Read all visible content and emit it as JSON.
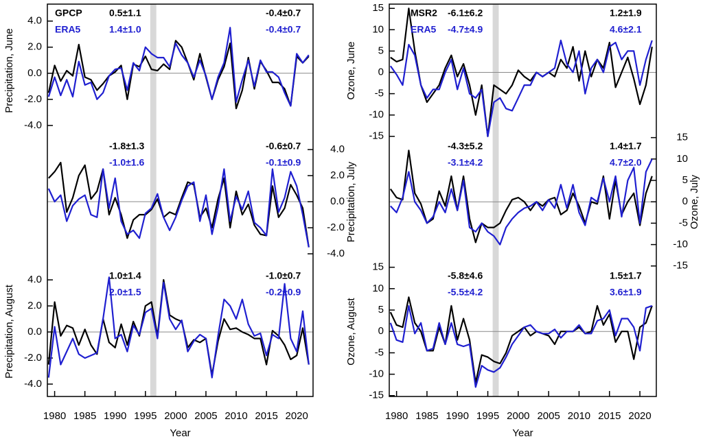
{
  "chart_data": [
    {
      "type": "line",
      "ylabel": "Precipitation, June",
      "yaxis_side": "left",
      "x": [
        1979,
        1980,
        1981,
        1982,
        1983,
        1984,
        1985,
        1986,
        1987,
        1988,
        1989,
        1990,
        1991,
        1992,
        1993,
        1994,
        1995,
        1996,
        1997,
        1998,
        1999,
        2000,
        2001,
        2002,
        2003,
        2004,
        2005,
        2006,
        2007,
        2008,
        2009,
        2010,
        2011,
        2012,
        2013,
        2014,
        2015,
        2016,
        2017,
        2018,
        2019,
        2020,
        2021,
        2022
      ],
      "xlim": [
        1978.8,
        2022.7
      ],
      "ylim": [
        -4.9,
        5.3
      ],
      "yticks": [
        {
          "value": 4,
          "label": "4.0"
        },
        {
          "value": 2,
          "label": "2.0"
        },
        {
          "value": 0,
          "label": "0.0"
        },
        {
          "value": -2,
          "label": "-2.0"
        },
        {
          "value": -4,
          "label": "-4.0"
        }
      ],
      "hline": 0,
      "highlight": [
        1995.8,
        1996.8
      ],
      "series": [
        {
          "name": "GPCP",
          "color": "#000000",
          "values": [
            -1.5,
            0.6,
            -0.6,
            0.2,
            -0.2,
            2.2,
            -0.3,
            -0.5,
            -1.3,
            -0.8,
            -0.2,
            0.1,
            0.6,
            -2.0,
            0.7,
            0.5,
            1.3,
            0.3,
            0.2,
            0.7,
            0.3,
            2.5,
            2.0,
            0.8,
            -0.5,
            1.5,
            -0.3,
            -2.0,
            -0.5,
            0.5,
            2.3,
            -2.7,
            -1.3,
            1.2,
            -1.2,
            0.9,
            0.2,
            -0.7,
            -0.7,
            -1.2,
            -2.5,
            1.3,
            0.8,
            1.3
          ]
        },
        {
          "name": "ERA5",
          "color": "#1f1fd0",
          "values": [
            -1.8,
            -0.3,
            -1.7,
            -0.5,
            -1.8,
            0.9,
            -0.9,
            -0.7,
            -2.0,
            -1.5,
            -0.2,
            0.3,
            0.4,
            -1.3,
            0.8,
            0.2,
            2.0,
            1.5,
            1.2,
            1.2,
            0.5,
            2.3,
            1.4,
            0.8,
            -0.3,
            1.0,
            -0.2,
            -2.0,
            -0.3,
            0.8,
            3.5,
            -2.2,
            -0.5,
            1.0,
            -1.0,
            1.0,
            0.1,
            0.1,
            -0.3,
            -1.5,
            -2.5,
            1.5,
            0.8,
            1.4
          ]
        }
      ],
      "trends": [
        [
          "0.5±1.1",
          "-0.4±0.7"
        ],
        [
          "1.4±1.0",
          "-0.4±0.7"
        ]
      ]
    },
    {
      "type": "line",
      "ylabel": "Precipitation, July",
      "yaxis_side": "right",
      "x": [
        1979,
        1980,
        1981,
        1982,
        1983,
        1984,
        1985,
        1986,
        1987,
        1988,
        1989,
        1990,
        1991,
        1992,
        1993,
        1994,
        1995,
        1996,
        1997,
        1998,
        1999,
        2000,
        2001,
        2002,
        2003,
        2004,
        2005,
        2006,
        2007,
        2008,
        2009,
        2010,
        2011,
        2012,
        2013,
        2014,
        2015,
        2016,
        2017,
        2018,
        2019,
        2020,
        2021,
        2022
      ],
      "xlim": [
        1978.8,
        2022.7
      ],
      "ylim": [
        -5.0,
        4.95
      ],
      "yticks": [
        {
          "value": 4,
          "label": "4.0"
        },
        {
          "value": 2,
          "label": "2.0"
        },
        {
          "value": 0,
          "label": "0.0"
        },
        {
          "value": -2,
          "label": "-2.0"
        },
        {
          "value": -4,
          "label": "-4.0"
        }
      ],
      "hline": 0,
      "highlight": [
        1995.8,
        1996.8
      ],
      "series": [
        {
          "color": "#000000",
          "values": [
            1.8,
            2.3,
            3.0,
            -0.8,
            0.3,
            2.0,
            2.8,
            0.2,
            0.8,
            2.5,
            -1.0,
            0.3,
            -1.0,
            -2.8,
            -1.4,
            -1.0,
            -1.0,
            -0.6,
            0.2,
            -1.2,
            -0.8,
            -1.0,
            0.3,
            1.5,
            1.3,
            -1.2,
            -0.5,
            -2.0,
            0.2,
            1.8,
            -2.0,
            0.8,
            -1.0,
            -0.2,
            -1.8,
            -2.5,
            -2.6,
            1.2,
            -1.2,
            -0.5,
            1.3,
            0.5,
            -0.5,
            -3.5
          ]
        },
        {
          "color": "#1f1fd0",
          "values": [
            1.0,
            0.0,
            0.5,
            -1.5,
            -0.3,
            0.2,
            0.5,
            -1.0,
            -1.2,
            2.5,
            -0.5,
            1.8,
            -1.5,
            -2.5,
            -2.2,
            -2.8,
            -0.9,
            -0.5,
            0.6,
            -1.2,
            -2.2,
            -1.2,
            0.1,
            1.2,
            1.5,
            -1.5,
            0.5,
            -2.5,
            -0.4,
            2.5,
            -1.5,
            0.4,
            -0.6,
            0.8,
            -1.6,
            -2.0,
            -2.6,
            2.5,
            -0.8,
            0.3,
            2.3,
            1.2,
            -1.0,
            -3.5
          ]
        }
      ],
      "trends": [
        [
          "-1.8±1.3",
          "-0.6±0.7"
        ],
        [
          "-1.0±1.6",
          "-0.1±0.9"
        ]
      ]
    },
    {
      "type": "line",
      "ylabel": "Precipitation, August",
      "yaxis_side": "left",
      "xlabel": "Year",
      "x": [
        1979,
        1980,
        1981,
        1982,
        1983,
        1984,
        1985,
        1986,
        1987,
        1988,
        1989,
        1990,
        1991,
        1992,
        1993,
        1994,
        1995,
        1996,
        1997,
        1998,
        1999,
        2000,
        2001,
        2002,
        2003,
        2004,
        2005,
        2006,
        2007,
        2008,
        2009,
        2010,
        2011,
        2012,
        2013,
        2014,
        2015,
        2016,
        2017,
        2018,
        2019,
        2020,
        2021,
        2022
      ],
      "xlim": [
        1978.8,
        2022.7
      ],
      "ylim": [
        -4.95,
        5.0
      ],
      "xticks": [
        1980,
        1985,
        1990,
        1995,
        2000,
        2005,
        2010,
        2015,
        2020
      ],
      "yticks": [
        {
          "value": 4,
          "label": "4.0"
        },
        {
          "value": 2,
          "label": "2.0"
        },
        {
          "value": 0,
          "label": "0.0"
        },
        {
          "value": -2,
          "label": "-2.0"
        },
        {
          "value": -4,
          "label": "-4.0"
        }
      ],
      "hline": 0,
      "highlight": [
        1995.8,
        1996.8
      ],
      "series": [
        {
          "color": "#000000",
          "values": [
            -2.5,
            2.3,
            -0.3,
            0.5,
            0.3,
            -1.0,
            0.2,
            -1.0,
            -1.7,
            1.0,
            -0.8,
            -1.2,
            0.6,
            -1.0,
            0.8,
            -0.3,
            2.0,
            2.3,
            -0.3,
            4.0,
            1.3,
            1.0,
            0.8,
            -1.2,
            -0.6,
            -0.8,
            -0.5,
            -3.3,
            -0.7,
            1.0,
            0.2,
            0.3,
            0.0,
            -0.2,
            -0.5,
            -0.5,
            -2.5,
            0.1,
            -0.3,
            -1.0,
            -2.1,
            -1.8,
            0.3,
            -2.5
          ]
        },
        {
          "color": "#1f1fd0",
          "values": [
            -3.5,
            0.4,
            -2.5,
            -1.5,
            -0.5,
            -1.7,
            -2.0,
            -1.8,
            -1.6,
            1.0,
            4.2,
            -0.5,
            -0.2,
            -1.5,
            0.5,
            -0.2,
            1.5,
            1.8,
            -0.5,
            3.8,
            1.0,
            0.2,
            0.9,
            -1.5,
            -0.7,
            -0.2,
            -0.5,
            -3.5,
            -0.3,
            2.5,
            2.0,
            1.0,
            2.5,
            0.6,
            -0.3,
            -0.1,
            -1.8,
            -0.2,
            -0.5,
            3.7,
            -0.5,
            -1.5,
            1.6,
            -2.5
          ]
        }
      ],
      "trends": [
        [
          "1.0±1.4",
          "-1.0±0.7"
        ],
        [
          "2.0±1.5",
          "-0.2±0.9"
        ]
      ]
    },
    {
      "type": "line",
      "ylabel": "Ozone, June",
      "yaxis_side": "left",
      "x": [
        1979,
        1980,
        1981,
        1982,
        1983,
        1984,
        1985,
        1986,
        1987,
        1988,
        1989,
        1990,
        1991,
        1992,
        1993,
        1994,
        1995,
        1996,
        1997,
        1998,
        1999,
        2000,
        2001,
        2002,
        2003,
        2004,
        2005,
        2006,
        2007,
        2008,
        2009,
        2010,
        2011,
        2012,
        2013,
        2014,
        2015,
        2016,
        2017,
        2018,
        2019,
        2020,
        2021,
        2022
      ],
      "xlim": [
        1978.8,
        2022.7
      ],
      "ylim": [
        -15.2,
        16.0
      ],
      "yticks": [
        15,
        10,
        5,
        0,
        -5,
        -10,
        -15
      ],
      "hline": 0,
      "highlight": [
        1995.8,
        1996.8
      ],
      "series": [
        {
          "name": "MSR2",
          "color": "#000000",
          "values": [
            3.5,
            2.5,
            3,
            15,
            5,
            -3,
            -7,
            -5,
            -3,
            1,
            4,
            -1,
            2,
            -3,
            -10,
            -3,
            -15,
            -3,
            -4,
            -5,
            -3,
            0.5,
            -1,
            -2,
            0,
            -1,
            0,
            -1,
            3,
            1,
            6,
            -2,
            5,
            -1,
            3,
            1,
            7,
            -3.5,
            0,
            3.5,
            -1.5,
            -7.5,
            -3,
            6
          ]
        },
        {
          "name": "ERA5",
          "color": "#1f1fd0",
          "values": [
            1.5,
            -0.5,
            -3,
            6.5,
            4,
            -3,
            -6,
            -4,
            -4,
            0,
            3,
            -4,
            1,
            -5,
            -6,
            -4,
            -15,
            -7,
            -6,
            -8.5,
            -9,
            -6,
            -3,
            -3,
            0,
            -1,
            0,
            1,
            7.5,
            2,
            0,
            5,
            -5,
            1,
            3,
            0,
            6,
            7,
            3,
            5,
            5,
            -3,
            3,
            7.5
          ]
        }
      ],
      "trends": [
        [
          "-6.1±6.2",
          "1.2±1.9"
        ],
        [
          "-4.7±4.9",
          "4.6±2.1"
        ]
      ]
    },
    {
      "type": "line",
      "ylabel": "Ozone, July",
      "yaxis_side": "right",
      "x": [
        1979,
        1980,
        1981,
        1982,
        1983,
        1984,
        1985,
        1986,
        1987,
        1988,
        1989,
        1990,
        1991,
        1992,
        1993,
        1994,
        1995,
        1996,
        1997,
        1998,
        1999,
        2000,
        2001,
        2002,
        2003,
        2004,
        2005,
        2006,
        2007,
        2008,
        2009,
        2010,
        2011,
        2012,
        2013,
        2014,
        2015,
        2016,
        2017,
        2018,
        2019,
        2020,
        2021,
        2022
      ],
      "xlim": [
        1978.8,
        2022.7
      ],
      "ylim": [
        -15.2,
        15.1
      ],
      "yticks": [
        15,
        10,
        5,
        0,
        -5,
        -10,
        -15
      ],
      "hline": 0,
      "highlight": [
        1995.8,
        1996.8
      ],
      "series": [
        {
          "color": "#000000",
          "values": [
            3,
            1,
            0.5,
            12,
            2,
            -0.5,
            -5,
            -4,
            2.5,
            -1,
            6,
            -2,
            6,
            -4,
            -9.5,
            -5,
            -6,
            -6,
            -5,
            -2,
            0.5,
            1,
            0,
            -2,
            0,
            -1,
            0.5,
            1,
            -3,
            -2,
            2,
            -1,
            -5,
            0,
            -0.5,
            6,
            -4,
            5,
            -3,
            0,
            2,
            -5.5,
            2,
            6
          ]
        },
        {
          "color": "#1f1fd0",
          "values": [
            -1,
            -2.5,
            1,
            7,
            0,
            -2,
            -5,
            -3.5,
            0,
            -2.5,
            3,
            -2,
            5,
            -6,
            -7,
            -5,
            -7,
            -8,
            -10,
            -6,
            -4,
            -2.5,
            -1.5,
            -1,
            0,
            -2,
            0.5,
            -1.5,
            4,
            -1.5,
            4,
            -2.5,
            -5.5,
            1,
            0,
            5.5,
            0,
            6,
            -3.5,
            5,
            8,
            -5,
            7,
            10
          ]
        }
      ],
      "trends": [
        [
          "-4.3±5.2",
          "1.4±1.7"
        ],
        [
          "-3.1±4.2",
          "4.7±2.0"
        ]
      ]
    },
    {
      "type": "line",
      "ylabel": "Ozone, August",
      "yaxis_side": "left",
      "xlabel": "Year",
      "x": [
        1979,
        1980,
        1981,
        1982,
        1983,
        1984,
        1985,
        1986,
        1987,
        1988,
        1989,
        1990,
        1991,
        1992,
        1993,
        1994,
        1995,
        1996,
        1997,
        1998,
        1999,
        2000,
        2001,
        2002,
        2003,
        2004,
        2005,
        2006,
        2007,
        2008,
        2009,
        2010,
        2011,
        2012,
        2013,
        2014,
        2015,
        2016,
        2017,
        2018,
        2019,
        2020,
        2021,
        2022
      ],
      "xlim": [
        1978.8,
        2022.7
      ],
      "ylim": [
        -15.2,
        15.1
      ],
      "xticks": [
        1980,
        1985,
        1990,
        1995,
        2000,
        2005,
        2010,
        2015,
        2020
      ],
      "yticks": [
        15,
        10,
        5,
        0,
        -5,
        -10,
        -15
      ],
      "hline": 0,
      "highlight": [
        1995.8,
        1996.8
      ],
      "series": [
        {
          "color": "#000000",
          "values": [
            4.5,
            1.5,
            1,
            8,
            2,
            0,
            -4.5,
            -4.5,
            1,
            -3,
            6,
            -2,
            3,
            -2,
            -12,
            -5.5,
            -6,
            -7,
            -7.5,
            -5,
            -1,
            0,
            1,
            -1,
            0,
            -0.5,
            -1,
            -3,
            0,
            0,
            0,
            1,
            -0.5,
            0,
            6,
            1.5,
            4,
            -2.5,
            0,
            0,
            -6.5,
            1,
            2,
            6
          ]
        },
        {
          "color": "#1f1fd0",
          "values": [
            2,
            -2,
            -2.5,
            6,
            -0.5,
            2,
            -4.5,
            -4,
            2,
            -3,
            2,
            -3,
            -3.5,
            -3,
            -13,
            -8,
            -9,
            -9.5,
            -8.5,
            -6,
            -3,
            -1,
            1,
            1.5,
            0,
            -0.5,
            -0.5,
            0.5,
            -1.5,
            0,
            0,
            1.5,
            -0.5,
            -0.5,
            2.5,
            3,
            5,
            -1,
            3,
            3,
            1,
            -4.5,
            5.5,
            6
          ]
        }
      ],
      "trends": [
        [
          "-5.8±4.6",
          "1.5±1.7"
        ],
        [
          "-5.5±4.2",
          "3.6±1.9"
        ]
      ]
    }
  ]
}
